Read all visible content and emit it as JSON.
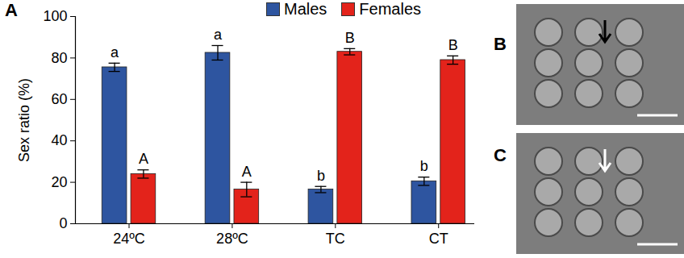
{
  "panel_labels": [
    "A",
    "B",
    "C"
  ],
  "chart_data": {
    "type": "bar",
    "categories": [
      "24ºC",
      "28ºC",
      "TC",
      "CT"
    ],
    "series": [
      {
        "name": "Males",
        "color": "#2e55a0",
        "values": [
          75.5,
          82.5,
          16.5,
          20.5
        ],
        "errors": [
          2,
          3.5,
          1.5,
          2
        ],
        "letters": [
          "a",
          "a",
          "b",
          "b"
        ]
      },
      {
        "name": "Females",
        "color": "#e3231b",
        "values": [
          24,
          16.5,
          83,
          79
        ],
        "errors": [
          2,
          3.5,
          1.5,
          2
        ],
        "letters": [
          "A",
          "A",
          "B",
          "B"
        ]
      }
    ],
    "y_label": "Sex ratio (%)",
    "ylim": [
      0,
      100
    ],
    "yticks": [
      0,
      20,
      40,
      60,
      80,
      100
    ],
    "legend": "top"
  }
}
